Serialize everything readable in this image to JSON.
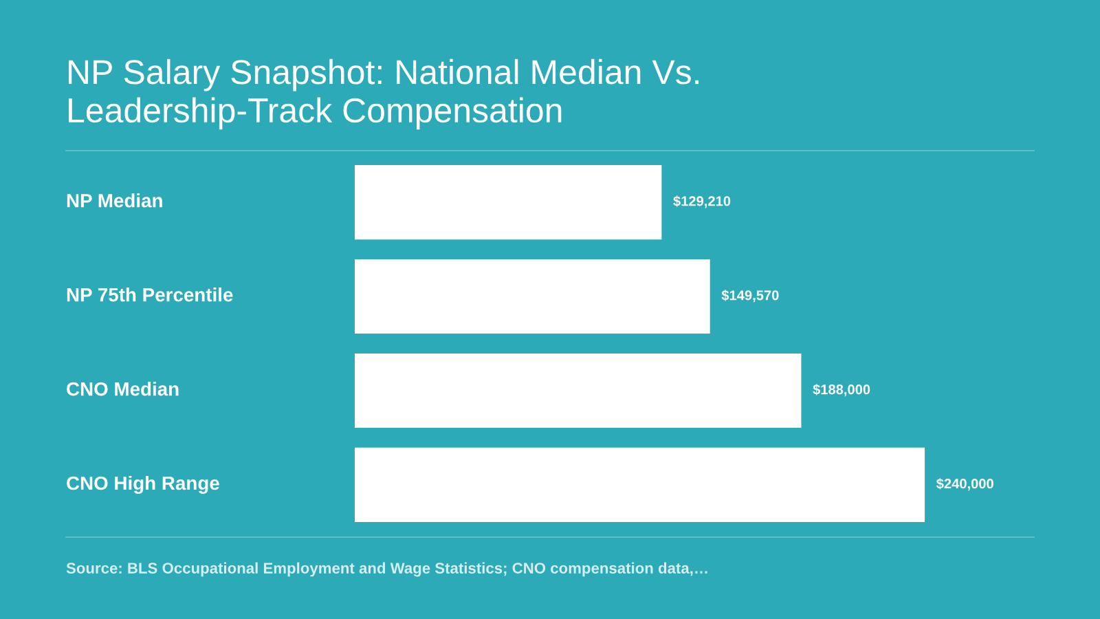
{
  "chart_data": {
    "type": "bar",
    "orientation": "horizontal",
    "title": "NP Salary Snapshot: National Median Vs.\nLeadership-Track Compensation",
    "categories": [
      "NP Median",
      "NP 75th Percentile",
      "CNO Median",
      "CNO High Range"
    ],
    "values": [
      129210,
      149570,
      188000,
      240000
    ],
    "value_labels": [
      "$129,210",
      "$149,570",
      "$188,000",
      "$240,000"
    ],
    "color": "#ffffff",
    "xlim": [
      0,
      286000
    ],
    "annotations": [
      "Source: BLS Occupational Employment and Wage Statistics; CNO compensation data,…"
    ]
  }
}
